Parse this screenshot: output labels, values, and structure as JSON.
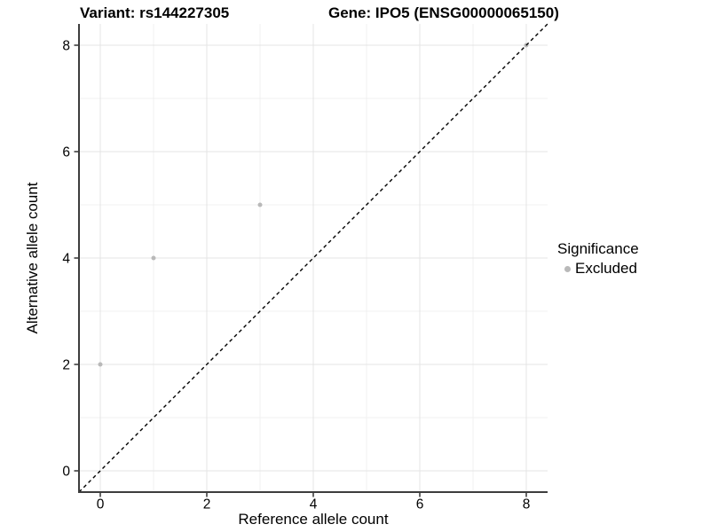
{
  "titles": {
    "variant": "Variant: rs144227305",
    "gene": "Gene: IPO5 (ENSG00000065150)"
  },
  "chart_data": {
    "type": "scatter",
    "title_left": "Variant: rs144227305",
    "title_right": "Gene: IPO5 (ENSG00000065150)",
    "xlabel": "Reference allele count",
    "ylabel": "Alternative allele count",
    "xlim": [
      -0.4,
      8.4
    ],
    "ylim": [
      -0.4,
      8.4
    ],
    "x_ticks": [
      0,
      2,
      4,
      6,
      8
    ],
    "y_ticks": [
      0,
      2,
      4,
      6,
      8
    ],
    "x_minor_gridlines": [
      1,
      3,
      5,
      7
    ],
    "y_minor_gridlines": [
      1,
      3,
      5,
      7
    ],
    "grid": true,
    "series": [
      {
        "name": "Excluded",
        "color": "#b9b9b9",
        "points": [
          {
            "x": 0,
            "y": 2
          },
          {
            "x": 1,
            "y": 4
          },
          {
            "x": 3,
            "y": 5
          },
          {
            "x": 8,
            "y": 8
          }
        ]
      }
    ],
    "reference_line": {
      "type": "identity",
      "style": "dashed",
      "color": "#000000"
    },
    "legend": {
      "title": "Significance",
      "position": "right",
      "items": [
        {
          "label": "Excluded",
          "color": "#b9b9b9"
        }
      ]
    }
  },
  "colors": {
    "background": "#ffffff",
    "grid_major": "#e4e4e4",
    "grid_minor": "#f1f1f1",
    "axis_line": "#3d3d3d",
    "tick_mark": "#333333",
    "point": "#b9b9b9",
    "text": "#000000"
  }
}
